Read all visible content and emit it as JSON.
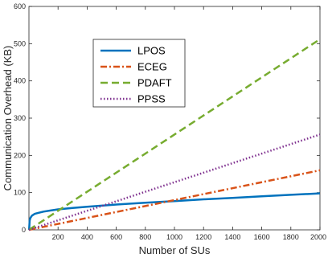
{
  "chart_data": {
    "type": "line",
    "xlabel": "Number of SUs",
    "ylabel": "Communication Overhead (KB)",
    "xlim": [
      0,
      2000
    ],
    "ylim": [
      0,
      600
    ],
    "x_ticks": [
      200,
      400,
      600,
      800,
      1000,
      1200,
      1400,
      1600,
      1800,
      2000
    ],
    "y_ticks": [
      0,
      100,
      200,
      300,
      400,
      500,
      600
    ],
    "grid": false,
    "legend_position": "upper-left",
    "series": [
      {
        "name": "LPOS",
        "color": "#0072BD",
        "dash": "solid",
        "x": [
          1,
          5,
          10,
          20,
          40,
          60,
          100,
          150,
          200,
          300,
          400,
          500,
          600,
          800,
          1000,
          1200,
          1400,
          1600,
          1800,
          2000
        ],
        "y": [
          0,
          25,
          32,
          38,
          43,
          45,
          49,
          52,
          55,
          59,
          62,
          65,
          68,
          73,
          77,
          82,
          86,
          90,
          94,
          98
        ]
      },
      {
        "name": "ECEG",
        "color": "#D95319",
        "dash": "dashdot",
        "x": [
          0,
          2000
        ],
        "y": [
          0,
          160
        ]
      },
      {
        "name": "PDAFT",
        "color": "#77AC30",
        "dash": "dashed",
        "x": [
          0,
          2000
        ],
        "y": [
          0,
          512
        ]
      },
      {
        "name": "PPSS",
        "color": "#7E2F8E",
        "dash": "dotted",
        "x": [
          0,
          2000
        ],
        "y": [
          0,
          256
        ]
      }
    ]
  }
}
